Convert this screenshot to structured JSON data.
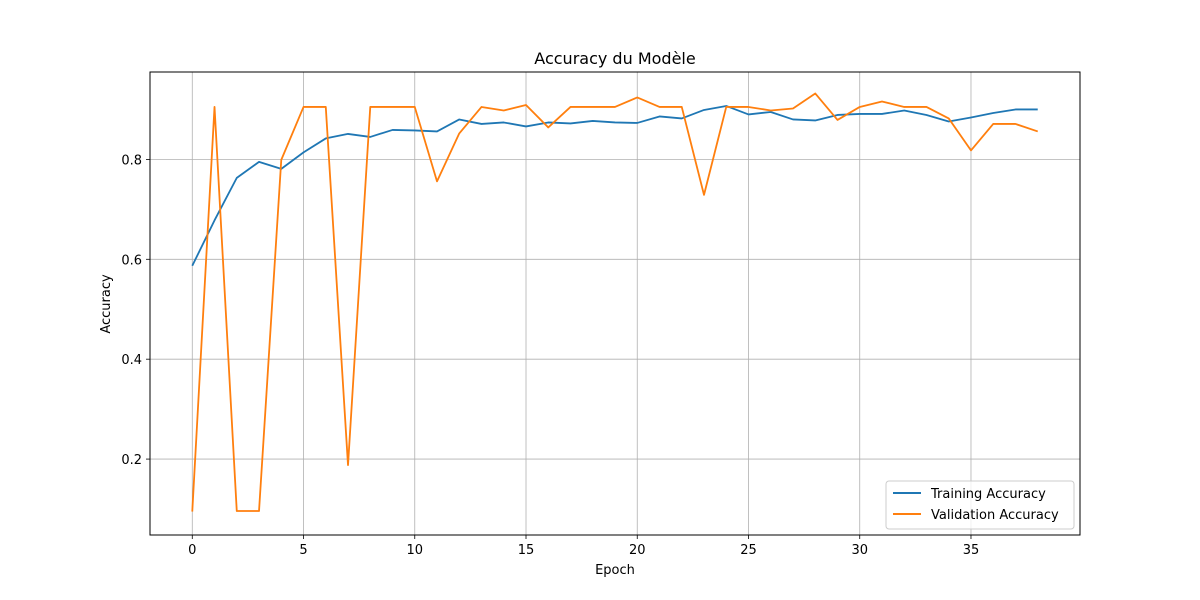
{
  "chart_data": {
    "type": "line",
    "title": "Accuracy du Modèle",
    "xlabel": "Epoch",
    "ylabel": "Accuracy",
    "xlim": [
      -1.9,
      39.9
    ],
    "ylim": [
      0.048,
      0.975
    ],
    "xticks": [
      0,
      5,
      10,
      15,
      20,
      25,
      30,
      35
    ],
    "yticks": [
      0.2,
      0.4,
      0.6,
      0.8
    ],
    "grid": true,
    "legend_position": "lower-right",
    "x": [
      0,
      1,
      2,
      3,
      4,
      5,
      6,
      7,
      8,
      9,
      10,
      11,
      12,
      13,
      14,
      15,
      16,
      17,
      18,
      19,
      20,
      21,
      22,
      23,
      24,
      25,
      26,
      27,
      28,
      29,
      30,
      31,
      32,
      33,
      34,
      35,
      36,
      37,
      38
    ],
    "series": [
      {
        "name": "Training Accuracy",
        "color": "#1f77b4",
        "values": [
          0.587,
          0.678,
          0.763,
          0.795,
          0.781,
          0.814,
          0.842,
          0.851,
          0.845,
          0.859,
          0.858,
          0.856,
          0.88,
          0.871,
          0.874,
          0.866,
          0.874,
          0.872,
          0.877,
          0.874,
          0.873,
          0.886,
          0.882,
          0.899,
          0.907,
          0.89,
          0.895,
          0.88,
          0.878,
          0.889,
          0.891,
          0.891,
          0.898,
          0.889,
          0.876,
          0.884,
          0.893,
          0.9,
          0.9
        ]
      },
      {
        "name": "Validation Accuracy",
        "color": "#ff7f0e",
        "values": [
          0.095,
          0.905,
          0.096,
          0.096,
          0.799,
          0.905,
          0.905,
          0.188,
          0.905,
          0.905,
          0.905,
          0.756,
          0.852,
          0.905,
          0.898,
          0.909,
          0.864,
          0.905,
          0.905,
          0.905,
          0.924,
          0.905,
          0.905,
          0.729,
          0.905,
          0.905,
          0.898,
          0.902,
          0.932,
          0.879,
          0.905,
          0.916,
          0.905,
          0.905,
          0.882,
          0.818,
          0.871,
          0.871,
          0.856
        ]
      }
    ]
  }
}
